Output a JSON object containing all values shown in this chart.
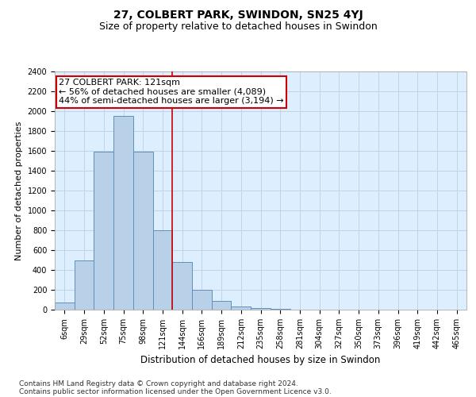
{
  "title": "27, COLBERT PARK, SWINDON, SN25 4YJ",
  "subtitle": "Size of property relative to detached houses in Swindon",
  "xlabel": "Distribution of detached houses by size in Swindon",
  "ylabel": "Number of detached properties",
  "categories": [
    "6sqm",
    "29sqm",
    "52sqm",
    "75sqm",
    "98sqm",
    "121sqm",
    "144sqm",
    "166sqm",
    "189sqm",
    "212sqm",
    "235sqm",
    "258sqm",
    "281sqm",
    "304sqm",
    "327sqm",
    "350sqm",
    "373sqm",
    "396sqm",
    "419sqm",
    "442sqm",
    "465sqm"
  ],
  "values": [
    75,
    500,
    1590,
    1950,
    1590,
    800,
    480,
    200,
    90,
    30,
    20,
    5,
    3,
    2,
    2,
    2,
    2,
    1,
    1,
    1,
    1
  ],
  "bar_color": "#b8d0e8",
  "bar_edge_color": "#6090b8",
  "red_line_index": 5,
  "annotation_line1": "27 COLBERT PARK: 121sqm",
  "annotation_line2": "← 56% of detached houses are smaller (4,089)",
  "annotation_line3": "44% of semi-detached houses are larger (3,194) →",
  "annotation_box_color": "#ffffff",
  "annotation_border_color": "#cc0000",
  "ylim": [
    0,
    2400
  ],
  "yticks": [
    0,
    200,
    400,
    600,
    800,
    1000,
    1200,
    1400,
    1600,
    1800,
    2000,
    2200,
    2400
  ],
  "grid_color": "#c0d4e8",
  "background_color": "#ddeeff",
  "footer_line1": "Contains HM Land Registry data © Crown copyright and database right 2024.",
  "footer_line2": "Contains public sector information licensed under the Open Government Licence v3.0.",
  "title_fontsize": 10,
  "subtitle_fontsize": 9,
  "tick_fontsize": 7,
  "ylabel_fontsize": 8,
  "xlabel_fontsize": 8.5,
  "footer_fontsize": 6.5,
  "annotation_fontsize": 8
}
